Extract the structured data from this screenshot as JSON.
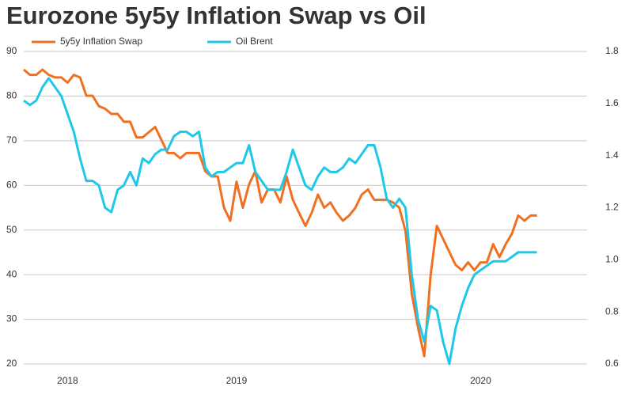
{
  "chart_data": {
    "type": "line",
    "title": "Eurozone 5y5y Inflation Swap vs Oil",
    "categories": [
      null,
      null,
      null,
      null,
      null,
      null,
      null,
      "2018",
      null,
      null,
      null,
      null,
      null,
      null,
      null,
      null,
      null,
      null,
      null,
      null,
      null,
      null,
      null,
      null,
      null,
      null,
      null,
      null,
      null,
      null,
      null,
      null,
      null,
      null,
      "2019",
      null,
      null,
      null,
      null,
      null,
      null,
      null,
      null,
      null,
      null,
      null,
      null,
      null,
      null,
      null,
      null,
      null,
      null,
      null,
      null,
      null,
      null,
      null,
      null,
      null,
      null,
      null,
      null,
      null,
      null,
      null,
      null,
      null,
      null,
      null,
      null,
      null,
      null,
      "2020",
      null,
      null,
      null,
      null,
      null,
      null,
      null,
      null,
      null,
      null,
      null,
      null,
      null,
      null,
      null,
      null
    ],
    "series": [
      {
        "name": "5y5y Inflation Swap",
        "color": "#f07020",
        "axis": "y2",
        "values": [
          1.73,
          1.71,
          1.71,
          1.73,
          1.71,
          1.7,
          1.7,
          1.68,
          1.71,
          1.7,
          1.63,
          1.63,
          1.59,
          1.58,
          1.56,
          1.56,
          1.53,
          1.53,
          1.47,
          1.47,
          1.49,
          1.51,
          1.46,
          1.41,
          1.41,
          1.39,
          1.41,
          1.41,
          1.41,
          1.34,
          1.32,
          1.32,
          1.2,
          1.15,
          1.3,
          1.2,
          1.29,
          1.34,
          1.22,
          1.27,
          1.27,
          1.22,
          1.32,
          1.23,
          1.18,
          1.13,
          1.18,
          1.25,
          1.2,
          1.22,
          1.18,
          1.15,
          1.17,
          1.2,
          1.25,
          1.27,
          1.23,
          1.23,
          1.23,
          1.22,
          1.2,
          1.11,
          0.87,
          0.74,
          0.63,
          0.94,
          1.13,
          1.08,
          1.03,
          0.98,
          0.96,
          0.99,
          0.96,
          0.99,
          0.99,
          1.06,
          1.01,
          1.06,
          1.1,
          1.17,
          1.15,
          1.17,
          1.17,
          null,
          null,
          null,
          null,
          null,
          null,
          null
        ]
      },
      {
        "name": "Oil Brent",
        "color": "#1ec8e8",
        "values": [
          79,
          78,
          79,
          82,
          84,
          82,
          80,
          76,
          72,
          66,
          61,
          61,
          60,
          55,
          54,
          59,
          60,
          63,
          60,
          66,
          65,
          67,
          68,
          68,
          71,
          72,
          72,
          71,
          72,
          64,
          62,
          63,
          63,
          64,
          65,
          65,
          69,
          63,
          61,
          59,
          59,
          59,
          63,
          68,
          64,
          60,
          59,
          62,
          64,
          63,
          63,
          64,
          66,
          65,
          67,
          69,
          69,
          64,
          57,
          55,
          57,
          55,
          40,
          30,
          25,
          33,
          32,
          25,
          20,
          28,
          33,
          37,
          40,
          41,
          42,
          43,
          43,
          43,
          44,
          45,
          45,
          45,
          45,
          null,
          null,
          null,
          null,
          null,
          null,
          null
        ]
      }
    ],
    "ylim": [
      20,
      90
    ],
    "yticks": [
      20,
      30,
      40,
      50,
      60,
      70,
      80,
      90
    ],
    "y2lim": [
      0.6,
      1.8
    ],
    "y2ticks": [
      0.6,
      0.8,
      {
        "value": 1,
        "label": "1.0"
      },
      1.2,
      1.4,
      1.6,
      1.8
    ],
    "grid": true
  }
}
